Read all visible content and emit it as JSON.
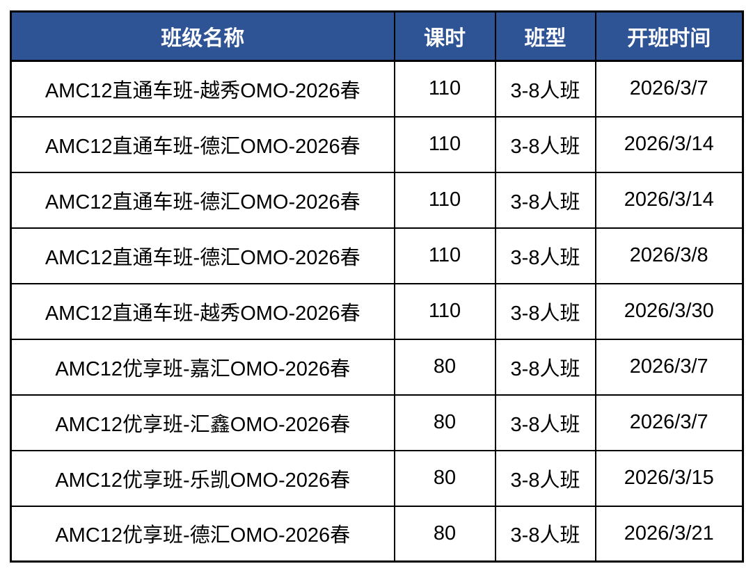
{
  "colors": {
    "header_bg": "#2F5496",
    "header_text": "#FFFFFF",
    "body_text": "#000000",
    "border": "#000000"
  },
  "table": {
    "headers": [
      "班级名称",
      "课时",
      "班型",
      "开班时间"
    ],
    "rows": [
      {
        "name": "AMC12直通车班-越秀OMO-2026春",
        "hours": "110",
        "type": "3-8人班",
        "start": "2026/3/7"
      },
      {
        "name": "AMC12直通车班-德汇OMO-2026春",
        "hours": "110",
        "type": "3-8人班",
        "start": "2026/3/14"
      },
      {
        "name": "AMC12直通车班-德汇OMO-2026春",
        "hours": "110",
        "type": "3-8人班",
        "start": "2026/3/14"
      },
      {
        "name": "AMC12直通车班-德汇OMO-2026春",
        "hours": "110",
        "type": "3-8人班",
        "start": "2026/3/8"
      },
      {
        "name": "AMC12直通车班-越秀OMO-2026春",
        "hours": "110",
        "type": "3-8人班",
        "start": "2026/3/30"
      },
      {
        "name": "AMC12优享班-嘉汇OMO-2026春",
        "hours": "80",
        "type": "3-8人班",
        "start": "2026/3/7"
      },
      {
        "name": "AMC12优享班-汇鑫OMO-2026春",
        "hours": "80",
        "type": "3-8人班",
        "start": "2026/3/7"
      },
      {
        "name": "AMC12优享班-乐凯OMO-2026春",
        "hours": "80",
        "type": "3-8人班",
        "start": "2026/3/15"
      },
      {
        "name": "AMC12优享班-德汇OMO-2026春",
        "hours": "80",
        "type": "3-8人班",
        "start": "2026/3/21"
      }
    ]
  }
}
